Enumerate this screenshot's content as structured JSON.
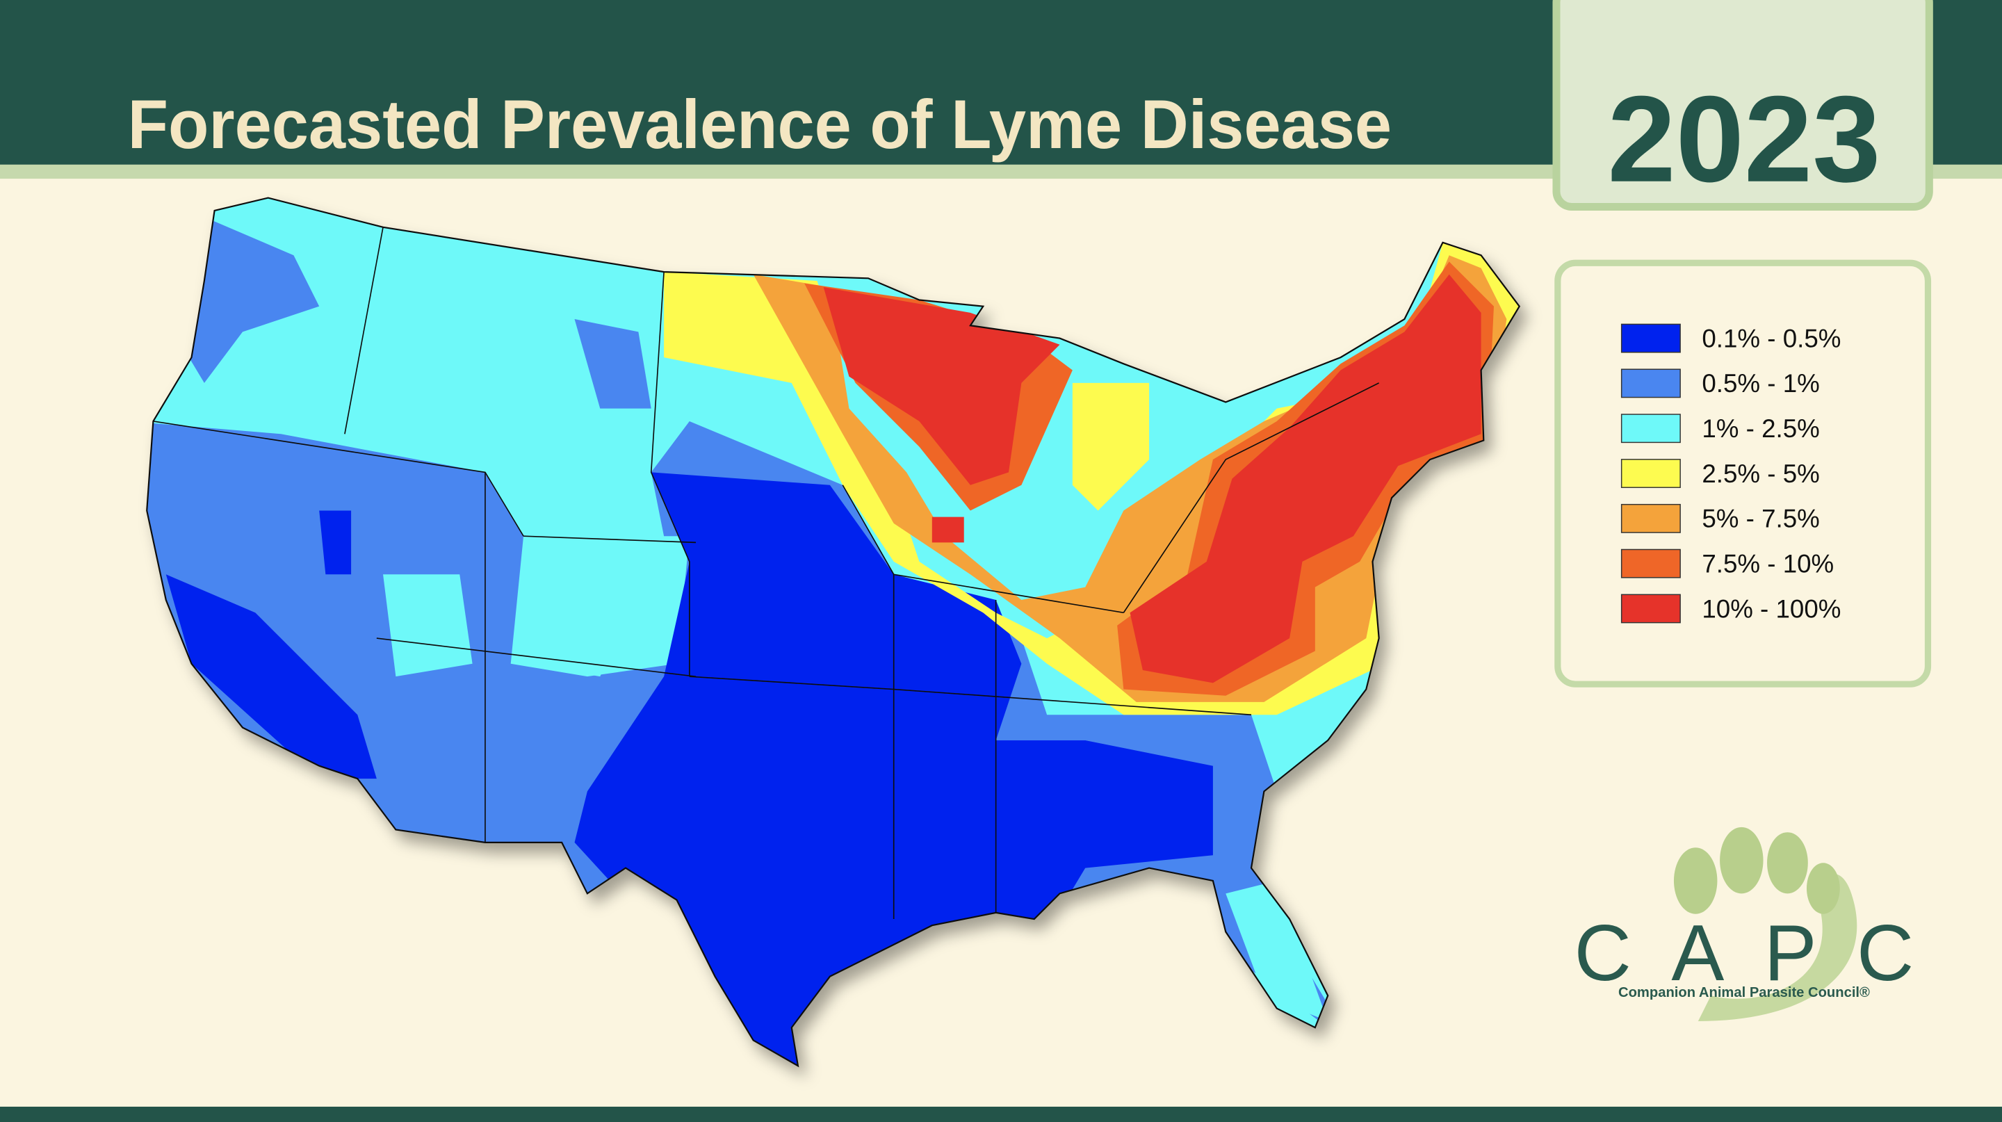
{
  "header": {
    "title": "Forecasted Prevalence of Lyme Disease",
    "year": "2023"
  },
  "legend": {
    "items": [
      {
        "label": "0.1% - 0.5%",
        "color": "#0022ee"
      },
      {
        "label": "0.5% - 1%",
        "color": "#4a86f0"
      },
      {
        "label": "1% - 2.5%",
        "color": "#6ef9f9"
      },
      {
        "label": "2.5% - 5%",
        "color": "#fdfb50"
      },
      {
        "label": "5% - 7.5%",
        "color": "#f4a33b"
      },
      {
        "label": "7.5% - 10%",
        "color": "#ef6628"
      },
      {
        "label": "10% - 100%",
        "color": "#e6332a"
      }
    ]
  },
  "logo": {
    "name": "CAPC",
    "subtitle": "Companion Animal Parasite Council®"
  }
}
